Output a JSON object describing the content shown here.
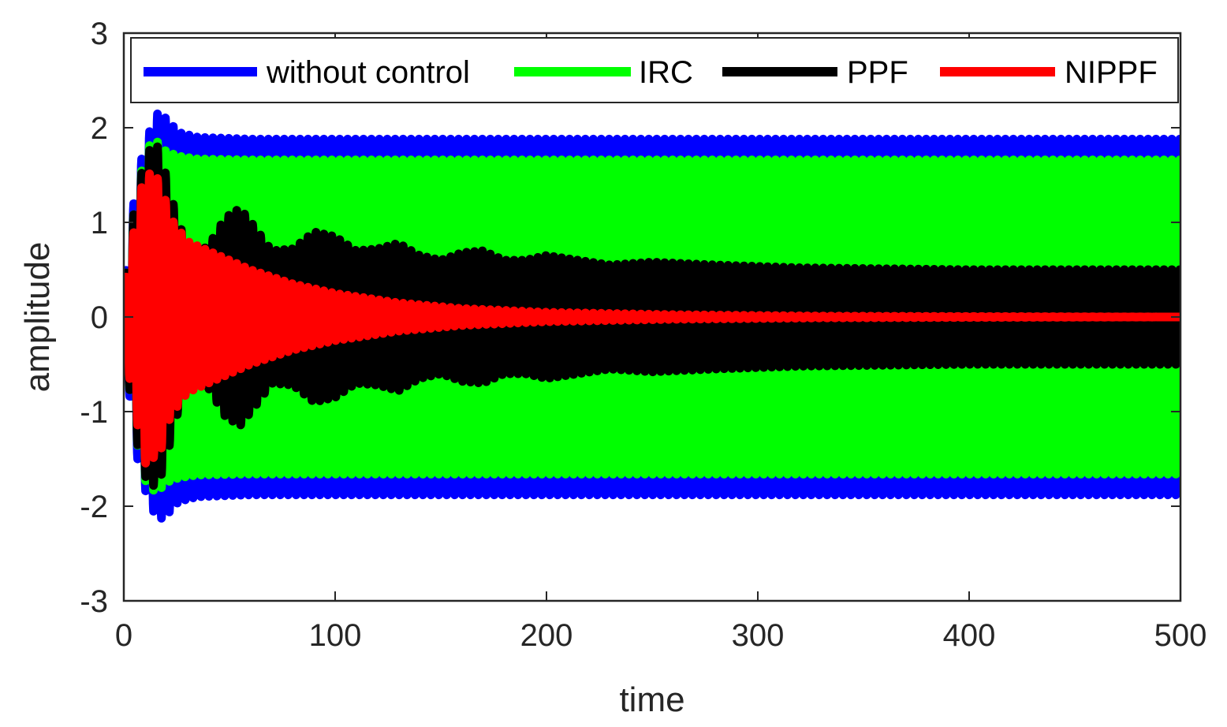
{
  "chart_data": {
    "type": "line",
    "xlabel": "time",
    "ylabel": "amplitude",
    "xlim": [
      0,
      500
    ],
    "ylim": [
      -3,
      3
    ],
    "xticks": [
      0,
      100,
      200,
      300,
      400,
      500
    ],
    "yticks": [
      -3,
      -2,
      -1,
      0,
      1,
      2,
      3
    ],
    "xtick_labels": [
      "0",
      "100",
      "200",
      "300",
      "400",
      "500"
    ],
    "ytick_labels": [
      "-3",
      "-2",
      "-1",
      "0",
      "1",
      "2",
      "3"
    ],
    "grid": false,
    "legend_position": "top",
    "oscillation_period": 3.75,
    "series": [
      {
        "name": "without control",
        "color": "#0000ff",
        "envelope_t": [
          0,
          6,
          11,
          16,
          20,
          26,
          35,
          60,
          500
        ],
        "envelope_amp": [
          0.3,
          1.45,
          1.9,
          2.15,
          2.1,
          1.95,
          1.9,
          1.88,
          1.88
        ]
      },
      {
        "name": "IRC",
        "color": "#00ff00",
        "envelope_t": [
          0,
          6,
          11,
          16,
          20,
          26,
          35,
          60,
          500
        ],
        "envelope_amp": [
          0.3,
          1.3,
          1.8,
          1.85,
          1.75,
          1.7,
          1.67,
          1.66,
          1.66
        ]
      },
      {
        "name": "PPF",
        "color": "#000000",
        "envelope_t": [
          0,
          6,
          11,
          16,
          20,
          25,
          32,
          40,
          48,
          55,
          62,
          70,
          80,
          90,
          100,
          110,
          120,
          130,
          140,
          150,
          160,
          170,
          180,
          190,
          200,
          215,
          230,
          250,
          280,
          320,
          400,
          500
        ],
        "envelope_amp": [
          0.3,
          1.3,
          1.75,
          1.8,
          1.5,
          1.05,
          0.65,
          0.75,
          1.05,
          1.15,
          0.95,
          0.7,
          0.72,
          0.9,
          0.85,
          0.7,
          0.72,
          0.78,
          0.65,
          0.6,
          0.68,
          0.7,
          0.6,
          0.6,
          0.65,
          0.6,
          0.55,
          0.58,
          0.55,
          0.52,
          0.5,
          0.5
        ]
      },
      {
        "name": "NIPPF",
        "color": "#ff0000",
        "envelope_t": [
          0,
          4,
          7,
          10,
          13,
          17,
          22,
          30,
          45,
          60,
          80,
          100,
          130,
          160,
          200,
          260,
          330,
          400,
          500
        ],
        "envelope_amp": [
          0.3,
          0.8,
          1.2,
          1.55,
          1.5,
          1.45,
          1.05,
          0.8,
          0.65,
          0.5,
          0.35,
          0.25,
          0.15,
          0.09,
          0.05,
          0.025,
          0.01,
          0.005,
          0.0
        ]
      }
    ]
  }
}
